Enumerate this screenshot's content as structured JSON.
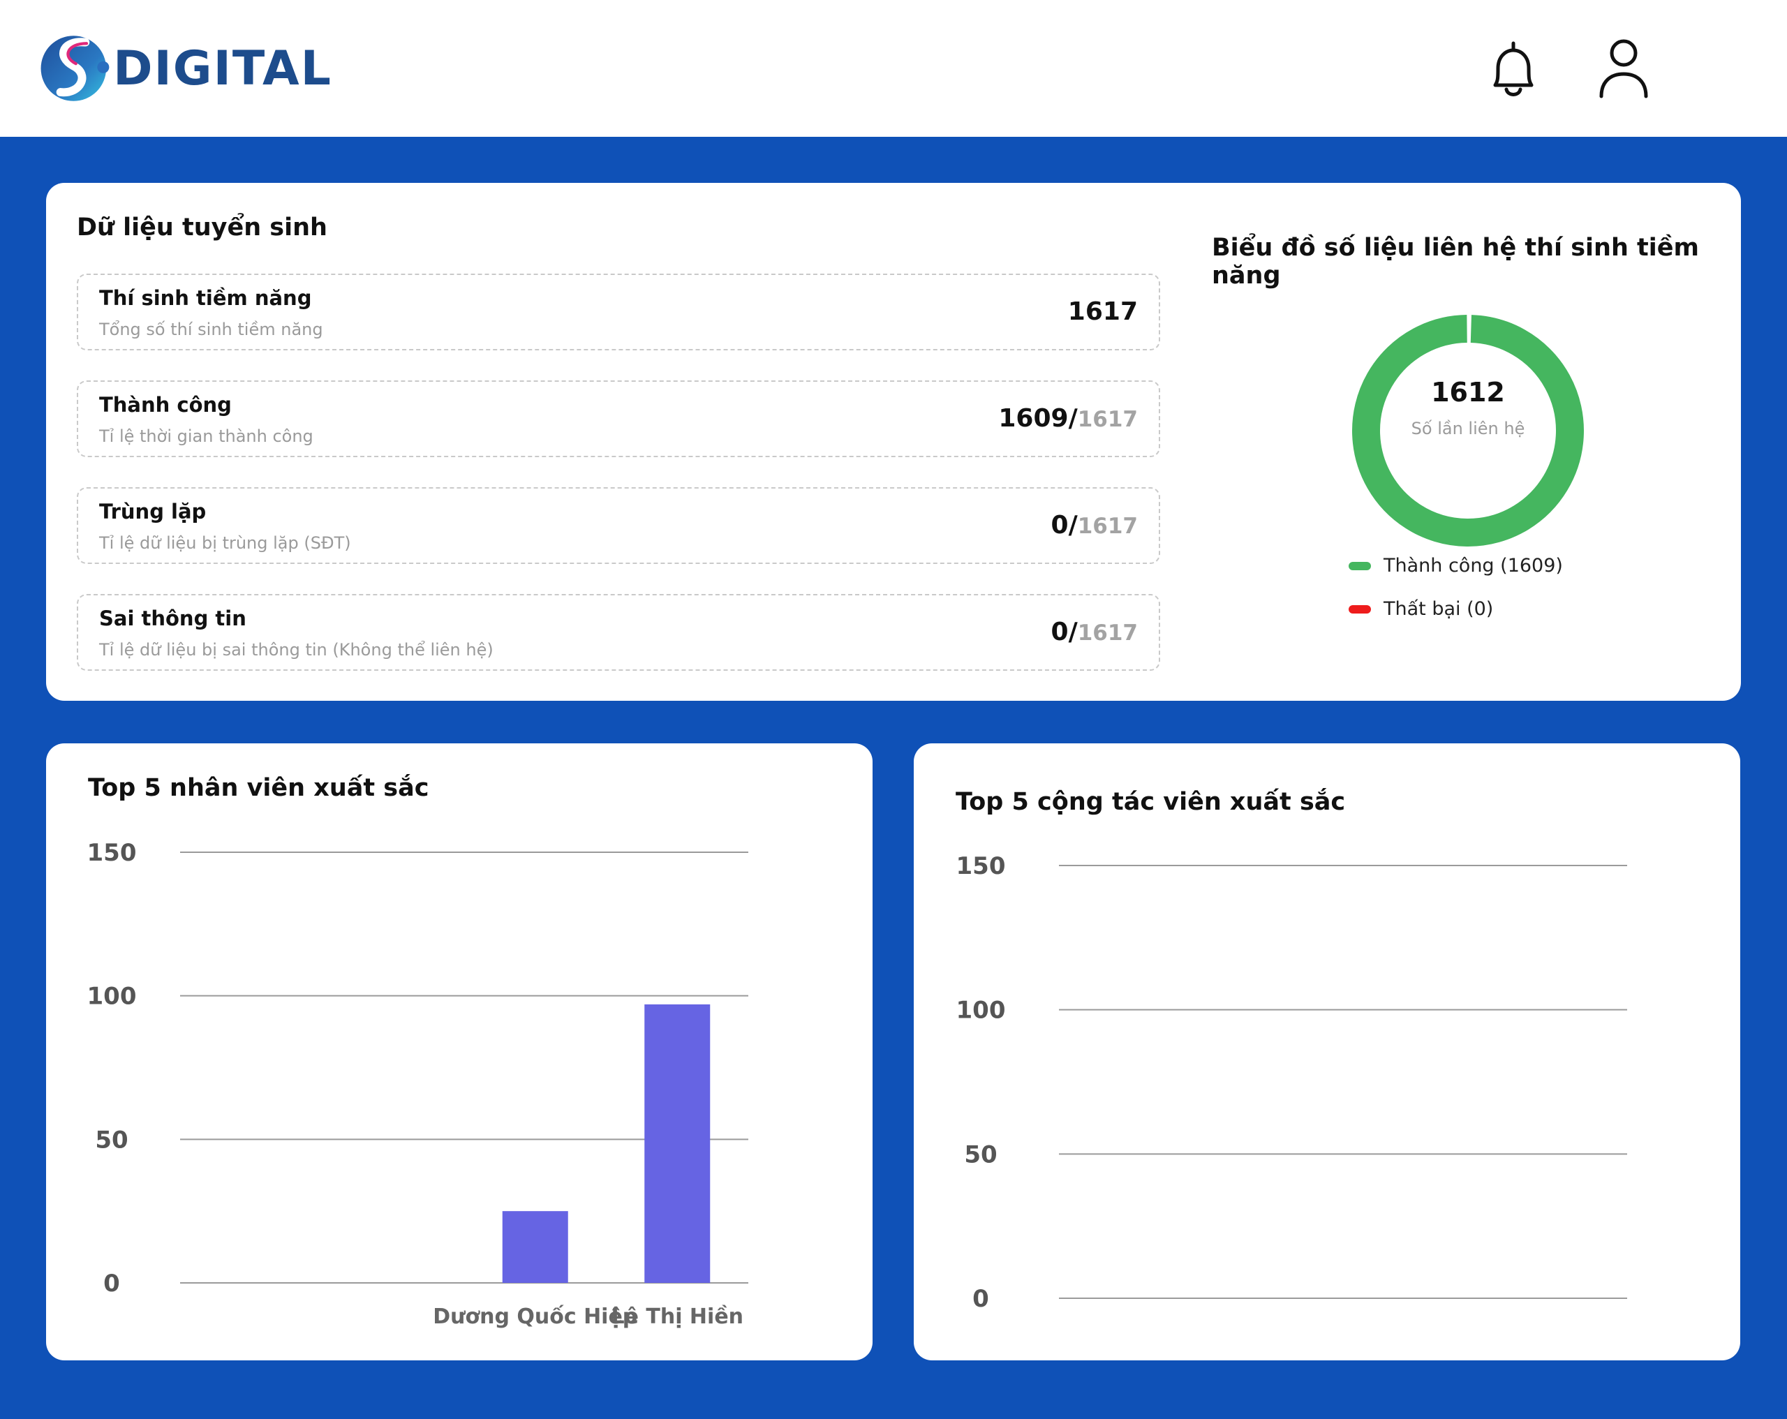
{
  "header": {
    "brand": "DIGITAL",
    "icons": {
      "notifications": "bell-icon",
      "profile": "user-icon"
    }
  },
  "colors": {
    "page_bg": "#0f51b7",
    "success": "#45b65f",
    "failure": "#ee1c1c",
    "bar": "#6664e3"
  },
  "admissions": {
    "title": "Dữ liệu tuyển sinh",
    "stats": [
      {
        "title": "Thí sinh tiềm năng",
        "subtitle": "Tổng số thí sinh tiềm năng",
        "value": "1617",
        "total": ""
      },
      {
        "title": "Thành công",
        "subtitle": "Tỉ lệ thời gian thành công",
        "value": "1609/",
        "total": "1617"
      },
      {
        "title": "Trùng lặp",
        "subtitle": "Tỉ lệ dữ liệu bị trùng lặp (SĐT)",
        "value": "0/",
        "total": "1617"
      },
      {
        "title": "Sai thông tin",
        "subtitle": "Tỉ lệ dữ liệu bị sai thông tin (Không thể liên hệ)",
        "value": "0/",
        "total": "1617"
      }
    ]
  },
  "contact_chart": {
    "title": "Biểu đồ số liệu liên hệ thí sinh tiềm năng",
    "center_value": "1612",
    "center_label": "Số lần liên hệ",
    "legend": [
      {
        "label": "Thành công (1609)",
        "color": "#45b65f"
      },
      {
        "label": "Thất bại (0)",
        "color": "#ee1c1c"
      }
    ]
  },
  "chart_data": [
    {
      "type": "pie",
      "title": "Biểu đồ số liệu liên hệ thí sinh tiềm năng",
      "categories": [
        "Thành công",
        "Thất bại"
      ],
      "values": [
        1609,
        0
      ]
    },
    {
      "type": "bar",
      "title": "Top 5 nhân viên xuất sắc",
      "categories": [
        "",
        "",
        "Dương Quốc Hiệp",
        "Lê Thị Hiền"
      ],
      "values": [
        0,
        0,
        25,
        97
      ],
      "yticks": [
        0,
        50,
        100,
        150
      ],
      "ylim": [
        0,
        150
      ],
      "grid": true
    },
    {
      "type": "bar",
      "title": "Top 5 cộng tác viên xuất sắc",
      "categories": [],
      "values": [],
      "yticks": [
        0,
        50,
        100,
        150
      ],
      "ylim": [
        0,
        150
      ],
      "grid": true
    }
  ]
}
